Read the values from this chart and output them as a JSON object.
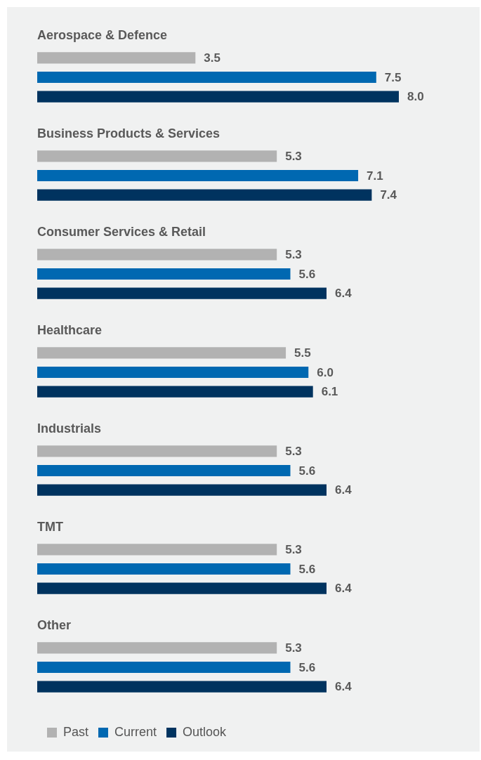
{
  "chart_data": {
    "type": "bar",
    "orientation": "horizontal",
    "legend": "bottom left",
    "tick_labels": "y",
    "categories": [
      "Aerospace & Defence",
      "Business Products & Services",
      "Consumer Services & Retail",
      "Healthcare",
      "Industrials",
      "TMT",
      "Other"
    ],
    "series": [
      {
        "name": "Past",
        "color": "#b2b2b2",
        "values": [
          3.5,
          5.3,
          5.3,
          5.5,
          5.3,
          5.3,
          5.3
        ],
        "value_labels": [
          "3.5",
          "5.3",
          "5.3",
          "5.5",
          "5.3",
          "5.3",
          "5.3"
        ]
      },
      {
        "name": "Current",
        "color": "#0068b1",
        "values": [
          7.5,
          7.1,
          5.6,
          6.0,
          5.6,
          5.6,
          5.6
        ],
        "value_labels": [
          "7.5",
          "7.1",
          "5.6",
          "6.0",
          "5.6",
          "5.6",
          "5.6"
        ]
      },
      {
        "name": "Outlook",
        "color": "#00335f",
        "values": [
          8.0,
          7.4,
          6.4,
          6.1,
          6.4,
          6.4,
          6.4
        ],
        "value_labels": [
          "8.0",
          "7.4",
          "6.4",
          "6.1",
          "6.4",
          "6.4",
          "6.4"
        ]
      }
    ]
  }
}
